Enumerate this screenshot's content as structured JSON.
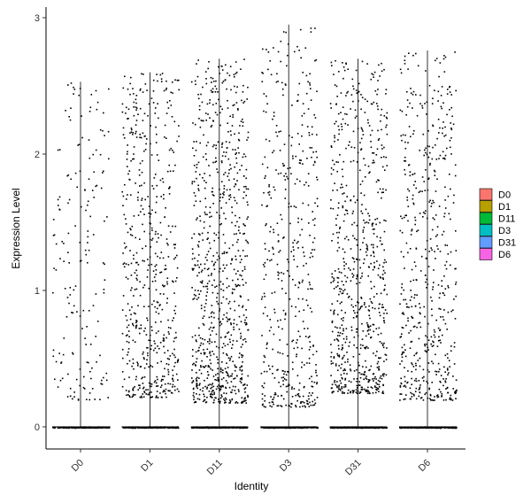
{
  "chart_data": {
    "type": "scatter",
    "subtype": "violin-jitter",
    "title": "",
    "xlabel": "Identity",
    "ylabel": "Expression Level",
    "categories": [
      "D0",
      "D1",
      "D11",
      "D3",
      "D31",
      "D6"
    ],
    "ylim": [
      -0.15,
      3.05
    ],
    "yticks": [
      0,
      1,
      2,
      3
    ],
    "max_values": [
      2.53,
      2.6,
      2.7,
      2.95,
      2.7,
      2.76
    ],
    "grid": false,
    "legend": {
      "position": "right",
      "entries": [
        {
          "name": "D0",
          "color": "#F8766D"
        },
        {
          "name": "D1",
          "color": "#B79F00"
        },
        {
          "name": "D11",
          "color": "#00BA38"
        },
        {
          "name": "D3",
          "color": "#00BFC4"
        },
        {
          "name": "D31",
          "color": "#619CFF"
        },
        {
          "name": "D6",
          "color": "#F564E3"
        }
      ]
    },
    "series": [
      {
        "category": "D0",
        "nonzero_points": 170,
        "value_min": 0.2,
        "value_max": 2.53,
        "zero_points": 250
      },
      {
        "category": "D1",
        "nonzero_points": 560,
        "value_min": 0.22,
        "value_max": 2.6,
        "zero_points": 250
      },
      {
        "category": "D11",
        "nonzero_points": 820,
        "value_min": 0.18,
        "value_max": 2.7,
        "zero_points": 250
      },
      {
        "category": "D3",
        "nonzero_points": 460,
        "value_min": 0.15,
        "value_max": 2.95,
        "zero_points": 250
      },
      {
        "category": "D31",
        "nonzero_points": 720,
        "value_min": 0.25,
        "value_max": 2.7,
        "zero_points": 250
      },
      {
        "category": "D6",
        "nonzero_points": 540,
        "value_min": 0.2,
        "value_max": 2.76,
        "zero_points": 250
      }
    ]
  }
}
